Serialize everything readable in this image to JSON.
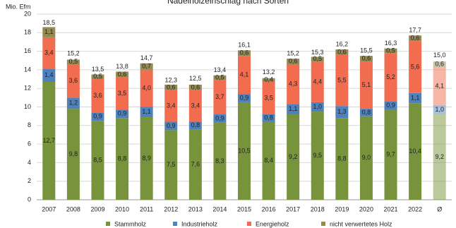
{
  "chart_data": {
    "type": "stacked-bar",
    "title": "Nadelholzeinschlag nach Sorten",
    "y_label": "Mio. Efm",
    "categories": [
      "2007",
      "2008",
      "2009",
      "2010",
      "2011",
      "2012",
      "2013",
      "2014",
      "2015",
      "2016",
      "2017",
      "2018",
      "2019",
      "2020",
      "2021",
      "2022",
      "Ø"
    ],
    "series": [
      {
        "name": "Stammholz",
        "color": "#77933c",
        "values": [
          12.7,
          9.8,
          8.5,
          8.8,
          8.9,
          7.5,
          7.6,
          8.3,
          10.5,
          8.4,
          9.2,
          9.5,
          8.8,
          9.0,
          9.7,
          10.4,
          9.2
        ],
        "value_labels": [
          "12,7",
          "9,8",
          "8,5",
          "8,8",
          "8,9",
          "7,5",
          "7,6",
          "8,3",
          "10,5",
          "8,4",
          "9,2",
          "9,5",
          "8,8",
          "9,0",
          "9,7",
          "10,4",
          "9,2"
        ]
      },
      {
        "name": "Industrieholz",
        "color": "#4f81bd",
        "values": [
          1.4,
          1.2,
          0.9,
          0.9,
          1.1,
          0.9,
          0.8,
          0.9,
          0.9,
          0.8,
          1.1,
          1.0,
          1.3,
          0.8,
          0.9,
          1.1,
          1.0
        ],
        "value_labels": [
          "1,4",
          "1,2",
          "0,9",
          "0,9",
          "1,1",
          "0,9",
          "0,8",
          "0,9",
          "0,9",
          "0,8",
          "1,1",
          "1,0",
          "1,3",
          "0,8",
          "0,9",
          "1,1",
          "1,0"
        ]
      },
      {
        "name": "Energieholz",
        "color": "#f26d4f",
        "values": [
          3.4,
          3.6,
          3.6,
          3.5,
          4.0,
          3.4,
          3.4,
          3.7,
          4.1,
          3.5,
          4.3,
          4.4,
          5.5,
          5.1,
          5.2,
          5.6,
          4.1
        ],
        "value_labels": [
          "3,4",
          "3,6",
          "3,6",
          "3,5",
          "4,0",
          "3,4",
          "3,4",
          "3,7",
          "4,1",
          "3,5",
          "4,3",
          "4,4",
          "5,5",
          "5,1",
          "5,2",
          "5,6",
          "4,1"
        ]
      },
      {
        "name": "nicht verwertetes Holz",
        "color": "#948a54",
        "values": [
          1.1,
          0.5,
          0.5,
          0.6,
          0.7,
          0.6,
          0.6,
          0.5,
          0.6,
          0.4,
          0.6,
          0.5,
          0.6,
          0.6,
          0.5,
          0.6,
          0.6
        ],
        "value_labels": [
          "1,1",
          "0,5",
          "0,5",
          "0,6",
          "0,7",
          "0,6",
          "0,6",
          "0,5",
          "0,6",
          "0,4",
          "0,6",
          "0,5",
          "0,6",
          "0,6",
          "0,5",
          "0,6",
          "0,6"
        ]
      }
    ],
    "totals": [
      18.5,
      15.2,
      13.5,
      13.8,
      14.7,
      12.3,
      12.5,
      13.4,
      16.1,
      13.2,
      15.2,
      15.3,
      16.2,
      15.5,
      16.3,
      17.7,
      15.0
    ],
    "total_labels": [
      "18,5",
      "15,2",
      "13,5",
      "13,8",
      "14,7",
      "12,3",
      "12,5",
      "13,4",
      "16,1",
      "13,2",
      "15,2",
      "15,3",
      "16,2",
      "15,5",
      "16,3",
      "17,7",
      "15,0"
    ],
    "ylim": [
      0,
      20
    ],
    "yticks": [
      0,
      2,
      4,
      6,
      8,
      10,
      12,
      14,
      16,
      18,
      20
    ],
    "grid": true,
    "legend": "bottom"
  }
}
